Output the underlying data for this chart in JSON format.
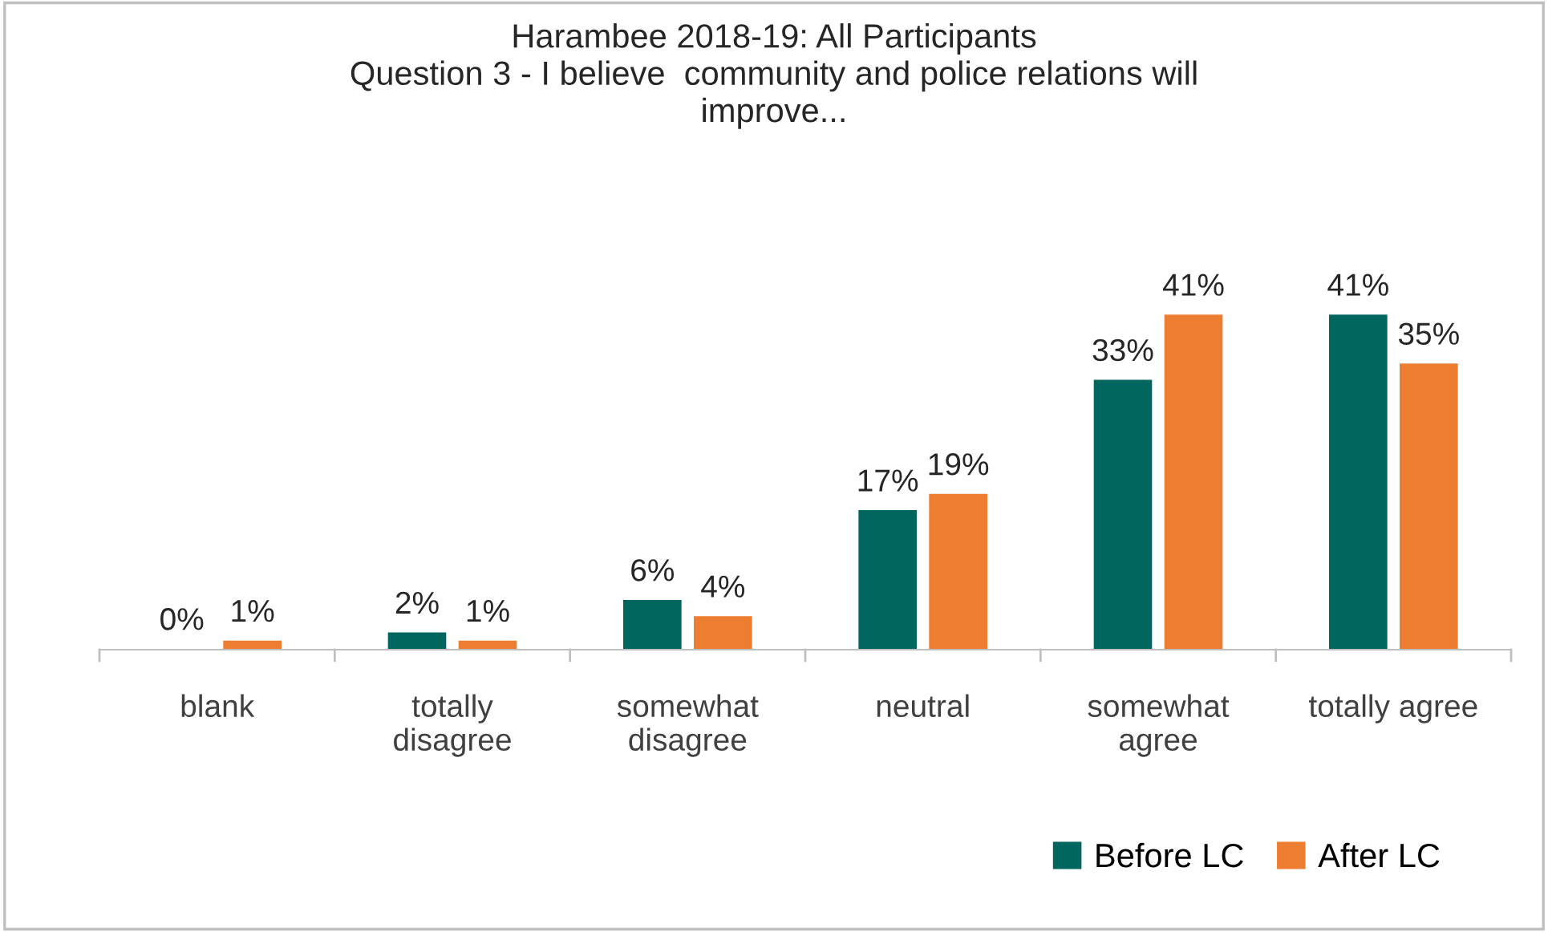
{
  "chart_data": {
    "type": "bar",
    "title": "Harambee 2018-19: All Participants\nQuestion 3 - I believe  community and police relations will\nimprove...",
    "categories": [
      "blank",
      "totally\ndisagree",
      "somewhat\ndisagree",
      "neutral",
      "somewhat\nagree",
      "totally agree"
    ],
    "series": [
      {
        "name": "Before LC",
        "color": "#00665e",
        "values": [
          0,
          2,
          6,
          17,
          33,
          41
        ],
        "value_labels": [
          "0%",
          "2%",
          "6%",
          "17%",
          "33%",
          "41%"
        ]
      },
      {
        "name": "After LC",
        "color": "#ed7d31",
        "values": [
          1,
          1,
          4,
          19,
          41,
          35
        ],
        "value_labels": [
          "1%",
          "1%",
          "4%",
          "19%",
          "41%",
          "35%"
        ]
      }
    ],
    "legend": "bottom right",
    "grid": false
  }
}
